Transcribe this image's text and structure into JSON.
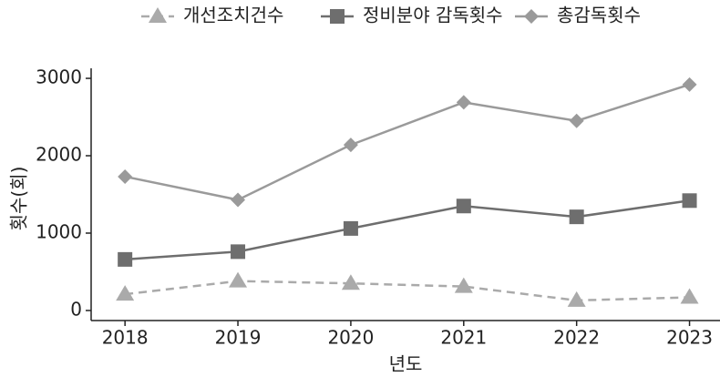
{
  "chart_data": {
    "type": "line",
    "x_label": "년도",
    "y_label": "횟수(회)",
    "x": [
      2018,
      2019,
      2020,
      2021,
      2022,
      2023
    ],
    "xlim": [
      2017.7,
      2023.27
    ],
    "xticks": [
      2018,
      2019,
      2020,
      2021,
      2022,
      2023
    ],
    "ylim": [
      -130,
      3130
    ],
    "yticks": [
      0,
      1000,
      2000,
      3000
    ],
    "series": [
      {
        "name": "개선조치건수",
        "color": "#aaaaaa",
        "marker": "triangle",
        "dashed": true,
        "values": [
          210,
          380,
          350,
          310,
          130,
          170
        ]
      },
      {
        "name": "정비분야 감독횟수",
        "color": "#6e6e6e",
        "marker": "square",
        "dashed": false,
        "values": [
          660,
          760,
          1060,
          1350,
          1210,
          1420
        ]
      },
      {
        "name": "총감독횟수",
        "color": "#9a9a9a",
        "marker": "diamond",
        "dashed": false,
        "values": [
          1730,
          1430,
          2140,
          2690,
          2450,
          2920
        ]
      }
    ]
  }
}
